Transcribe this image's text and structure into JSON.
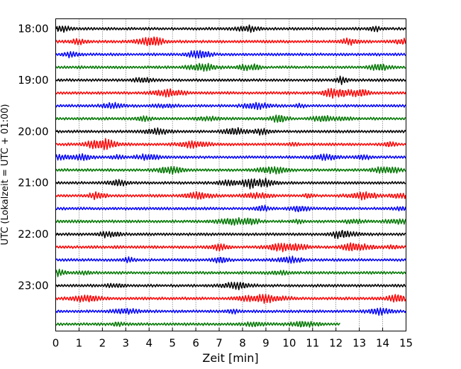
{
  "chart_data": {
    "type": "line",
    "title": "",
    "xlabel": "Zeit  [min]",
    "ylabel": "UTC (Lokalzeit = UTC + 01:00)",
    "xlim": [
      0,
      15
    ],
    "x_ticks": [
      "0",
      "1",
      "2",
      "3",
      "4",
      "5",
      "6",
      "7",
      "8",
      "9",
      "10",
      "11",
      "12",
      "13",
      "14",
      "15"
    ],
    "y_ticks": [
      {
        "label": "18:00",
        "trace_index": 0
      },
      {
        "label": "19:00",
        "trace_index": 4
      },
      {
        "label": "20:00",
        "trace_index": 8
      },
      {
        "label": "21:00",
        "trace_index": 12
      },
      {
        "label": "22:00",
        "trace_index": 16
      },
      {
        "label": "23:00",
        "trace_index": 20
      }
    ],
    "trace_interval_min": 15,
    "trace_start": "18:00",
    "trace_count": 24,
    "last_trace_end_min": 12.2,
    "colors": [
      "#000000",
      "#ff0000",
      "#0000ff",
      "#007700"
    ],
    "grid": "vertical dotted lines at each minute"
  }
}
